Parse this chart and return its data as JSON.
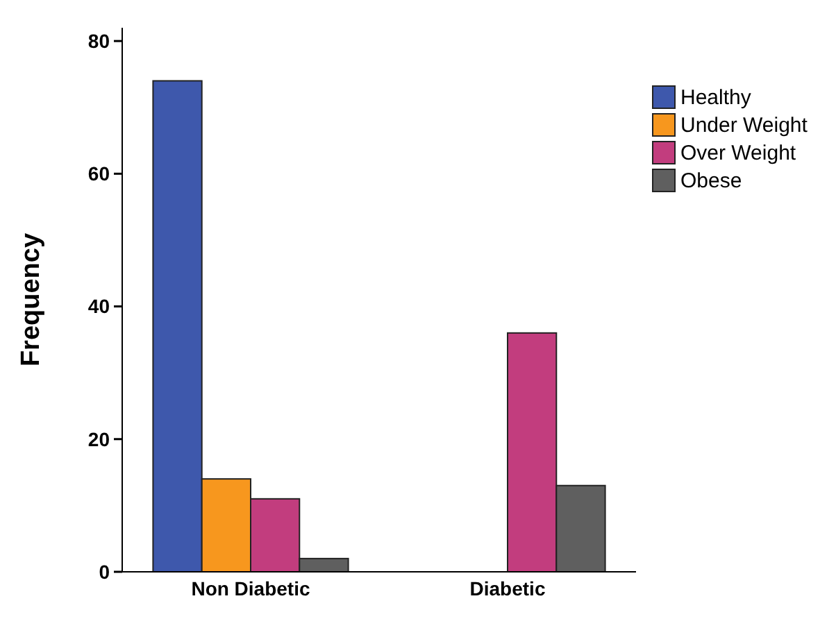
{
  "chart_data": {
    "type": "bar",
    "ylabel": "Frequency",
    "categories": [
      "Non Diabetic",
      "Diabetic"
    ],
    "series": [
      {
        "name": "Healthy",
        "color": "#3e58ac",
        "values": [
          74,
          0
        ]
      },
      {
        "name": "Under Weight",
        "color": "#f7971e",
        "values": [
          14,
          0
        ]
      },
      {
        "name": "Over Weight",
        "color": "#c23d7e",
        "values": [
          11,
          36
        ]
      },
      {
        "name": "Obese",
        "color": "#5f5f5f",
        "values": [
          2,
          13
        ]
      }
    ],
    "ylim": [
      0,
      82
    ],
    "yticks": [
      0,
      20,
      40,
      60,
      80
    ],
    "grid": false,
    "legend": "top right"
  }
}
